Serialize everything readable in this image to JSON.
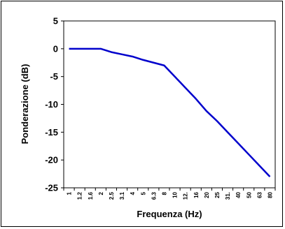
{
  "chart_data": {
    "type": "line",
    "title": "",
    "xlabel": "Frequenza (Hz)",
    "ylabel": "Ponderazione (dB)",
    "ylim": [
      -25,
      5
    ],
    "yticks": [
      "5",
      "0",
      "-5",
      "-10",
      "-15",
      "-20",
      "-25"
    ],
    "x_tick_labels": [
      "1",
      "1.2",
      "1.6",
      "2",
      "2.5",
      "3.1",
      "4",
      "5",
      "6.3",
      "8",
      "10",
      "12.",
      "16",
      "20",
      "25",
      "31.",
      "40",
      "50",
      "63",
      "80"
    ],
    "grid": false,
    "legend": "none",
    "series": [
      {
        "color": "#0000cc",
        "values": [
          0,
          0,
          0,
          0,
          -0.6,
          -1.0,
          -1.4,
          -2.0,
          -2.5,
          -3.0,
          -5.0,
          -7.0,
          -9.0,
          -11.2,
          -13.0,
          -15.0,
          -17.0,
          -19.0,
          -21.0,
          -23.0
        ]
      }
    ]
  }
}
